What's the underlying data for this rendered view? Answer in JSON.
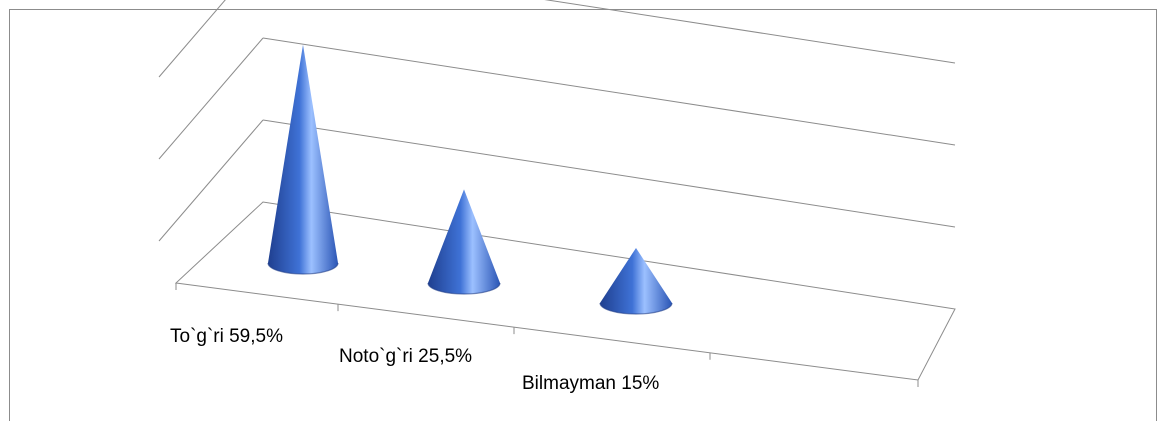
{
  "chart_data": {
    "type": "bar",
    "style": "3d-cone",
    "categories": [
      "To`g`ri  59,5%",
      "Noto`g`ri 25,5%",
      "Bilmayman 15%"
    ],
    "series": [
      {
        "values": [
          59.5,
          25.5,
          15
        ]
      }
    ],
    "ylim": [
      0,
      60
    ],
    "gridlines": true,
    "legend": "none",
    "colors": {
      "cone_dark": "#1f3f8f",
      "cone_mid": "#3f72d6",
      "cone_light": "#9cc0ff",
      "grid": "#8c8c8c"
    }
  }
}
